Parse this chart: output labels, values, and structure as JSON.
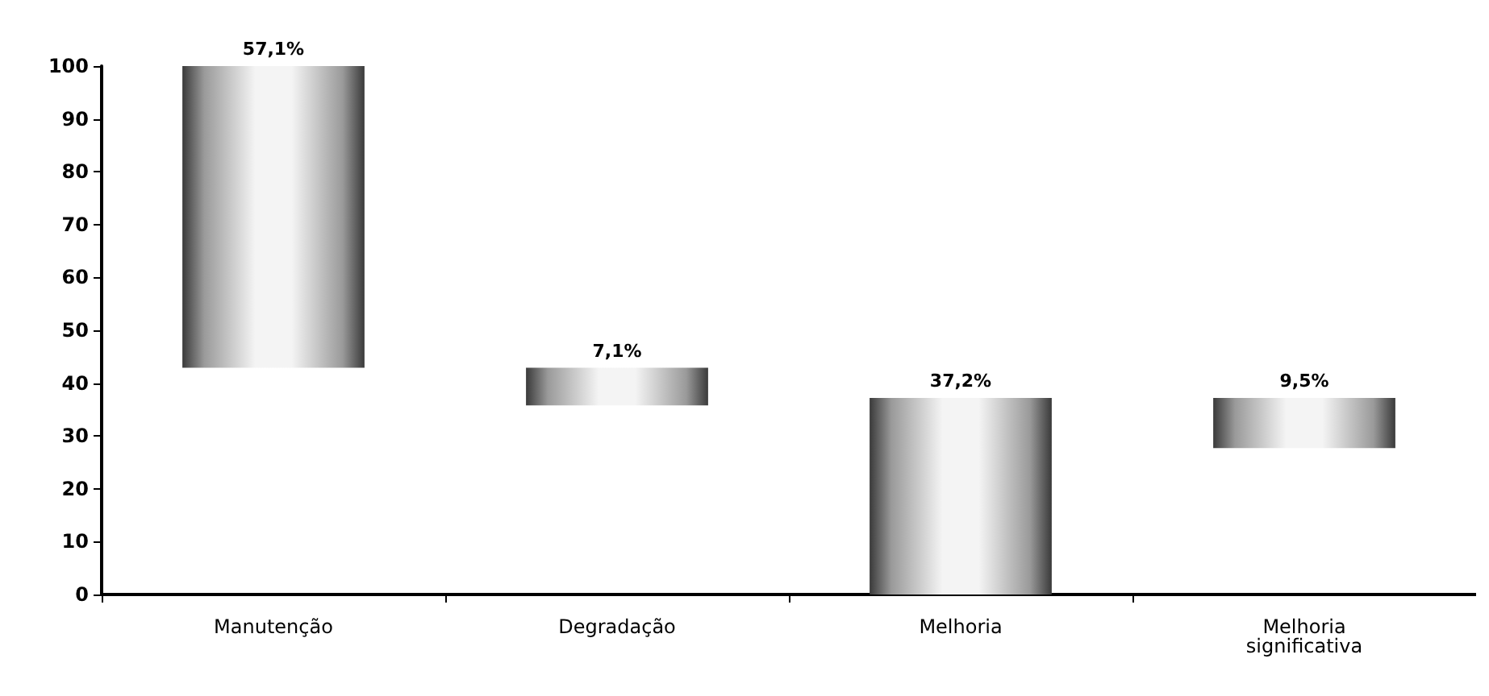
{
  "chart_data": {
    "type": "bar",
    "categories": [
      "Manutenção",
      "Degradação",
      "Melhoria",
      "Melhoria\nsignificativa"
    ],
    "base": [
      42.9,
      35.8,
      0,
      27.7
    ],
    "values": [
      57.1,
      7.1,
      37.2,
      9.5
    ],
    "value_labels": [
      "57,1%",
      "7,1%",
      "37,2%",
      "9,5%"
    ],
    "color": "#3a3a3a",
    "ylim": [
      0,
      100
    ],
    "yticks": [
      0,
      10,
      20,
      30,
      40,
      50,
      60,
      70,
      80,
      90,
      100
    ],
    "grid": false
  }
}
